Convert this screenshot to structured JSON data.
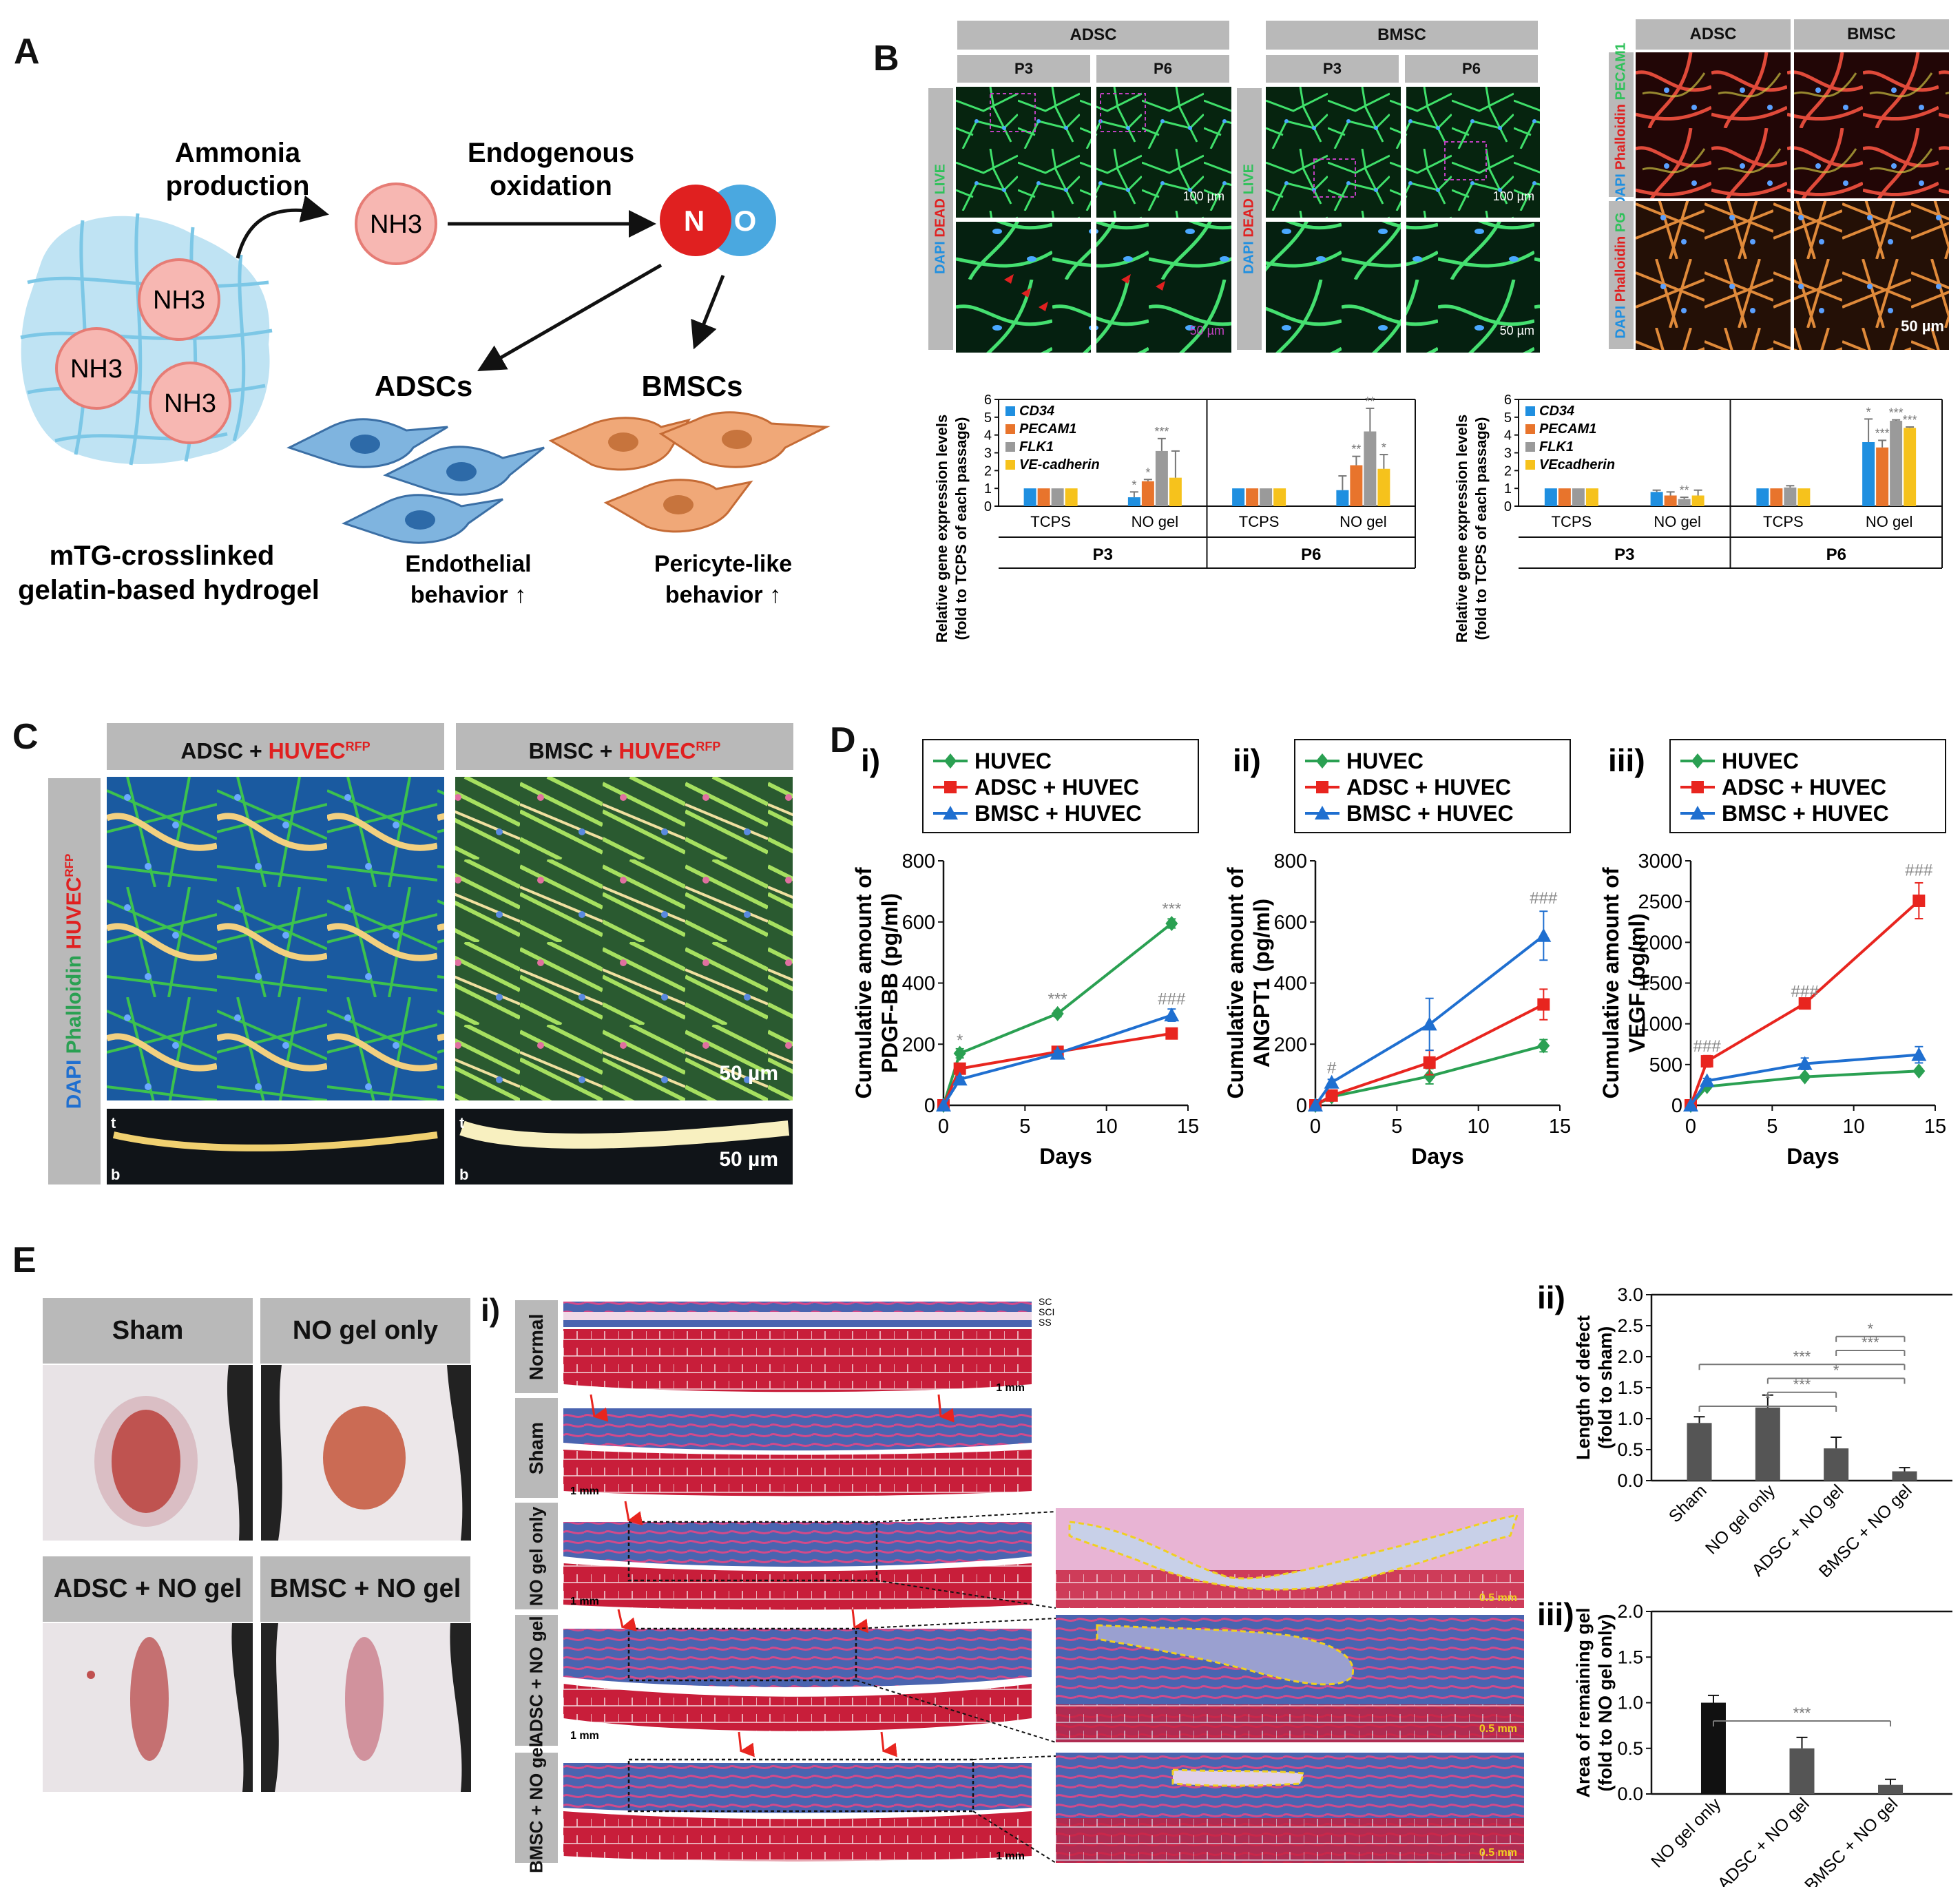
{
  "panels": {
    "A": "A",
    "B": "B",
    "C": "C",
    "D": "D",
    "E": "E"
  },
  "panel_a": {
    "ammonia": "Ammonia production",
    "ammonia_l1": "Ammonia",
    "ammonia_l2": "production",
    "endogenous_l1": "Endogenous",
    "endogenous_l2": "oxidation",
    "nh3": "NH3",
    "no_n": "N",
    "no_o": "O",
    "adscs": "ADSCs",
    "bmscs": "BMSCs",
    "hydrogel_l1": "mTG-crosslinked",
    "hydrogel_l2": "gelatin-based hydrogel",
    "endo_l1": "Endothelial",
    "endo_l2": "behavior ↑",
    "peri_l1": "Pericyte-like",
    "peri_l2": "behavior ↑"
  },
  "panel_b": {
    "adsc": "ADSC",
    "bmsc": "BMSC",
    "p3": "P3",
    "p6": "P6",
    "side_dapi": "DAPI",
    "side_dead": "DEAD",
    "side_live": "LIVE",
    "side_phalloidin": "Phalloidin",
    "side_pecam1": "PECAM1",
    "side_pg": "PG",
    "scale_100": "100 µm",
    "scale_50": "50 µm",
    "scale_50b": "50 µm",
    "colors": {
      "green": "#2fc15a",
      "blue": "#1f8fe0",
      "orange": "#e8742c",
      "gray": "#9a9a9a",
      "yellow": "#f6c21c"
    }
  },
  "panel_c": {
    "adsc_title": "ADSC + ",
    "bmsc_title": "BMSC + ",
    "huvec": "HUVEC",
    "rfp": "RFP",
    "side_dapi": "DAPI",
    "side_phalloidin": "Phalloidin",
    "side_huvec": "HUVEC",
    "side_rfp": "RFP",
    "scale1": "50 µm",
    "scale2": "50 µm",
    "t": "t",
    "b": "b"
  },
  "panel_e": {
    "photos": [
      "Sham",
      "NO gel only",
      "ADSC + NO gel",
      "BMSC + NO gel"
    ],
    "sub_i": "i)",
    "rows": [
      "Normal",
      "Sham",
      "NO gel only",
      "ADSC + NO gel",
      "BMSC + NO gel"
    ],
    "layers": [
      "SC",
      "SCI",
      "SS"
    ],
    "scale_1mm": "1 mm",
    "scale_05mm": "0.5 mm"
  },
  "chart_data": [
    {
      "id": "b-gene-adsc",
      "type": "bar",
      "ylabel": "Relative gene expression levels (fold to TCPS of each passage)",
      "ylabel_l1": "Relative gene expression levels",
      "ylabel_l2": "(fold to TCPS of each passage)",
      "ylim": [
        0,
        6
      ],
      "yticks": [
        "0",
        "1",
        "2",
        "3",
        "4",
        "5",
        "6"
      ],
      "legend": [
        "CD34",
        "PECAM1",
        "FLK1",
        "VE-cadherin"
      ],
      "groups": [
        {
          "passage": "P3",
          "category": "TCPS",
          "values": [
            1,
            1,
            1,
            1
          ],
          "errors": [
            0,
            0,
            0,
            0
          ],
          "sig": [
            "",
            "",
            "",
            ""
          ]
        },
        {
          "passage": "P3",
          "category": "NO gel",
          "values": [
            0.5,
            1.4,
            3.1,
            1.6
          ],
          "errors": [
            0.3,
            0.1,
            0.7,
            1.5
          ],
          "sig": [
            "*",
            "*",
            "***",
            ""
          ]
        },
        {
          "passage": "P6",
          "category": "TCPS",
          "values": [
            1,
            1,
            1,
            1
          ],
          "errors": [
            0,
            0,
            0,
            0
          ],
          "sig": [
            "",
            "",
            "",
            ""
          ]
        },
        {
          "passage": "P6",
          "category": "NO gel",
          "values": [
            0.9,
            2.3,
            4.2,
            2.1
          ],
          "errors": [
            0.8,
            0.5,
            1.3,
            0.8
          ],
          "sig": [
            "",
            "**",
            "**",
            "*"
          ]
        }
      ],
      "passages": [
        "P3",
        "P6"
      ]
    },
    {
      "id": "b-gene-bmsc",
      "type": "bar",
      "ylabel": "Relative gene expression levels (fold to TCPS of each passage)",
      "ylabel_l1": "Relative gene expression levels",
      "ylabel_l2": "(fold to TCPS of each passage)",
      "ylim": [
        0,
        6
      ],
      "yticks": [
        "0",
        "1",
        "2",
        "3",
        "4",
        "5",
        "6"
      ],
      "legend": [
        "CD34",
        "PECAM1",
        "FLK1",
        "VEcadherin"
      ],
      "groups": [
        {
          "passage": "P3",
          "category": "TCPS",
          "values": [
            1,
            1,
            1,
            1
          ],
          "errors": [
            0,
            0,
            0,
            0
          ],
          "sig": [
            "",
            "",
            "",
            ""
          ]
        },
        {
          "passage": "P3",
          "category": "NO gel",
          "values": [
            0.8,
            0.6,
            0.4,
            0.6
          ],
          "errors": [
            0.1,
            0.2,
            0.1,
            0.3
          ],
          "sig": [
            "",
            "",
            "**",
            ""
          ]
        },
        {
          "passage": "P6",
          "category": "TCPS",
          "values": [
            1,
            1,
            1.05,
            1
          ],
          "errors": [
            0,
            0,
            0.1,
            0
          ],
          "sig": [
            "",
            "",
            "",
            ""
          ]
        },
        {
          "passage": "P6",
          "category": "NO gel",
          "values": [
            3.6,
            3.3,
            4.8,
            4.4
          ],
          "errors": [
            1.3,
            0.4,
            0.05,
            0.05
          ],
          "sig": [
            "*",
            "***",
            "***",
            "***"
          ]
        }
      ],
      "passages": [
        "P3",
        "P6"
      ]
    },
    {
      "id": "d-i",
      "type": "line",
      "label": "i)",
      "ylabel": "Cumulative amount of PDGF-BB (pg/ml)",
      "ylabel_l1": "Cumulative amount of",
      "ylabel_l2": "PDGF-BB (pg/ml)",
      "xlabel": "Days",
      "xlim": [
        0,
        15
      ],
      "ylim": [
        0,
        800
      ],
      "xticks": [
        "0",
        "5",
        "10",
        "15"
      ],
      "yticks": [
        "0",
        "200",
        "400",
        "600",
        "800"
      ],
      "x": [
        0,
        1,
        7,
        14
      ],
      "series": [
        {
          "name": "HUVEC",
          "color": "#2aa052",
          "marker": "diamond",
          "values": [
            0,
            170,
            300,
            595
          ],
          "errors": [
            0,
            15,
            10,
            15
          ]
        },
        {
          "name": "ADSC + HUVEC",
          "color": "#e8251f",
          "marker": "square",
          "values": [
            0,
            120,
            175,
            235
          ],
          "errors": [
            0,
            10,
            8,
            10
          ]
        },
        {
          "name": "BMSC + HUVEC",
          "color": "#1f6fd0",
          "marker": "triangle",
          "values": [
            0,
            85,
            170,
            295
          ],
          "errors": [
            0,
            8,
            8,
            20
          ]
        }
      ],
      "annotations": [
        {
          "x": 1,
          "y": 195,
          "text": "*"
        },
        {
          "x": 7,
          "y": 330,
          "text": "***"
        },
        {
          "x": 14,
          "y": 625,
          "text": "***"
        },
        {
          "x": 14,
          "y": 330,
          "text": "###"
        }
      ]
    },
    {
      "id": "d-ii",
      "type": "line",
      "label": "ii)",
      "ylabel": "Cumulative amount of ANGPT1 (pg/ml)",
      "ylabel_l1": "Cumulative amount of",
      "ylabel_l2": "ANGPT1 (pg/ml)",
      "xlabel": "Days",
      "xlim": [
        0,
        15
      ],
      "ylim": [
        0,
        800
      ],
      "xticks": [
        "0",
        "5",
        "10",
        "15"
      ],
      "yticks": [
        "0",
        "200",
        "400",
        "600",
        "800"
      ],
      "x": [
        0,
        1,
        7,
        14
      ],
      "series": [
        {
          "name": "HUVEC",
          "color": "#2aa052",
          "marker": "diamond",
          "values": [
            0,
            28,
            95,
            195
          ],
          "errors": [
            0,
            5,
            25,
            20
          ]
        },
        {
          "name": "ADSC + HUVEC",
          "color": "#e8251f",
          "marker": "square",
          "values": [
            0,
            32,
            140,
            330
          ],
          "errors": [
            0,
            6,
            40,
            50
          ]
        },
        {
          "name": "BMSC + HUVEC",
          "color": "#1f6fd0",
          "marker": "triangle",
          "values": [
            0,
            75,
            265,
            555
          ],
          "errors": [
            0,
            10,
            85,
            80
          ]
        }
      ],
      "annotations": [
        {
          "x": 1,
          "y": 105,
          "text": "#"
        },
        {
          "x": 14,
          "y": 660,
          "text": "###"
        }
      ]
    },
    {
      "id": "d-iii",
      "type": "line",
      "label": "iii)",
      "ylabel": "Cumulative amount of VEGF (pg/ml)",
      "ylabel_l1": "Cumulative amount of",
      "ylabel_l2": "VEGF (pg/ml)",
      "xlabel": "Days",
      "xlim": [
        0,
        15
      ],
      "ylim": [
        0,
        3000
      ],
      "xticks": [
        "0",
        "5",
        "10",
        "15"
      ],
      "yticks": [
        "0",
        "500",
        "1000",
        "1500",
        "2000",
        "2500",
        "3000"
      ],
      "x": [
        0,
        1,
        7,
        14
      ],
      "series": [
        {
          "name": "HUVEC",
          "color": "#2aa052",
          "marker": "diamond",
          "values": [
            0,
            230,
            350,
            420
          ],
          "errors": [
            0,
            20,
            20,
            20
          ]
        },
        {
          "name": "ADSC + HUVEC",
          "color": "#e8251f",
          "marker": "square",
          "values": [
            0,
            540,
            1250,
            2510
          ],
          "errors": [
            0,
            70,
            30,
            220
          ]
        },
        {
          "name": "BMSC + HUVEC",
          "color": "#1f6fd0",
          "marker": "triangle",
          "values": [
            0,
            300,
            510,
            620
          ],
          "errors": [
            0,
            30,
            70,
            100
          ]
        }
      ],
      "annotations": [
        {
          "x": 1,
          "y": 660,
          "text": "###"
        },
        {
          "x": 7,
          "y": 1330,
          "text": "###"
        },
        {
          "x": 14,
          "y": 2820,
          "text": "###"
        }
      ]
    },
    {
      "id": "e-ii",
      "type": "bar",
      "label": "ii)",
      "ylabel": "Length of defect (fold to sham)",
      "ylabel_l1": "Length of defect",
      "ylabel_l2": "(fold to sham)",
      "ylim": [
        0,
        3.0
      ],
      "yticks": [
        "0.0",
        "0.5",
        "1.0",
        "1.5",
        "2.0",
        "2.5",
        "3.0"
      ],
      "categories": [
        "Sham",
        "NO gel only",
        "ADSC + NO gel",
        "BMSC + NO gel"
      ],
      "values": [
        0.93,
        1.18,
        0.52,
        0.15
      ],
      "errors": [
        0.1,
        0.2,
        0.18,
        0.06
      ],
      "color": "#555555",
      "brackets": [
        {
          "from": 0,
          "to": 2,
          "text": "*"
        },
        {
          "from": 1,
          "to": 2,
          "text": "***"
        },
        {
          "from": 1,
          "to": 3,
          "text": "*"
        },
        {
          "from": 0,
          "to": 3,
          "text": "***"
        },
        {
          "from": 2,
          "to": 3,
          "text": "***"
        },
        {
          "from": 2,
          "to": 3,
          "text": "*"
        }
      ]
    },
    {
      "id": "e-iii",
      "type": "bar",
      "label": "iii)",
      "ylabel": "Area of remaining gel (fold to NO gel only)",
      "ylabel_l1": "Area of remaining gel",
      "ylabel_l2": "(fold to NO gel only)",
      "ylim": [
        0,
        2.0
      ],
      "yticks": [
        "0.0",
        "0.5",
        "1.0",
        "1.5",
        "2.0"
      ],
      "categories": [
        "NO gel only",
        "ADSC + NO gel",
        "BMSC + NO gel"
      ],
      "values": [
        1.0,
        0.5,
        0.1
      ],
      "errors": [
        0.08,
        0.12,
        0.06
      ],
      "colors": [
        "#111111",
        "#555555",
        "#555555"
      ],
      "brackets": [
        {
          "from": 0,
          "to": 2,
          "text": "***"
        }
      ]
    }
  ]
}
